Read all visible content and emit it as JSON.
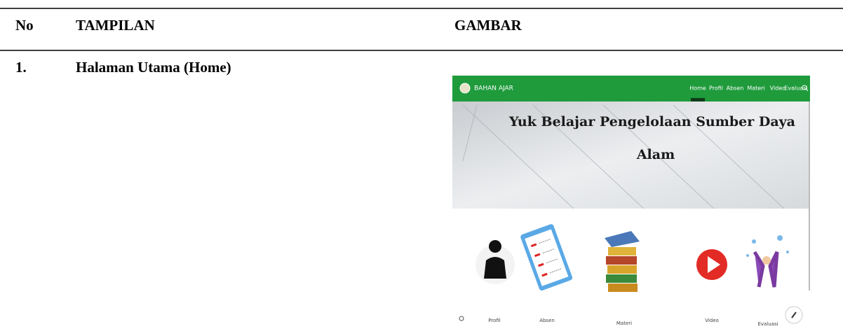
{
  "table": {
    "header": [
      "No",
      "TAMPILAN",
      "GAMBAR"
    ],
    "rows": [
      [
        "1.",
        "Halaman Utama (Home)"
      ]
    ]
  },
  "screenshot": {
    "brand": "BAHAN AJAR",
    "nav": [
      "Home",
      "Profil",
      "Absen",
      "Materi",
      "Video",
      "Evaluasi"
    ],
    "hero": [
      "Yuk Belajar Pengelolaan Sumber Daya",
      "Alam"
    ],
    "menu": [
      "Profil",
      "Absen",
      "Materi",
      "Video",
      "Evaluasi"
    ]
  }
}
